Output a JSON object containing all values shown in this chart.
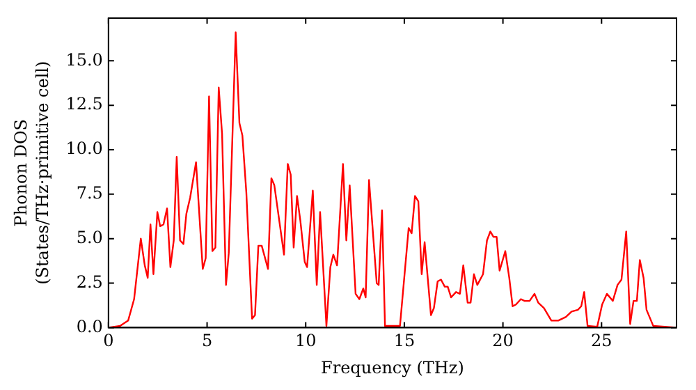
{
  "chart_data": {
    "type": "line",
    "xlabel": "Frequency (THz)",
    "ylabel": "Phonon DOS\n(States/THz·primitive cell)",
    "x": [
      0,
      0.6,
      1.0,
      1.3,
      1.64,
      1.84,
      1.99,
      2.13,
      2.28,
      2.48,
      2.62,
      2.79,
      2.97,
      3.14,
      3.31,
      3.46,
      3.63,
      3.8,
      3.95,
      4.14,
      4.44,
      4.78,
      4.93,
      5.1,
      5.27,
      5.42,
      5.59,
      5.76,
      5.96,
      6.1,
      6.45,
      6.64,
      6.79,
      6.99,
      7.28,
      7.43,
      7.6,
      7.77,
      8.09,
      8.26,
      8.41,
      8.9,
      9.09,
      9.24,
      9.39,
      9.56,
      9.73,
      9.95,
      10.07,
      10.36,
      10.56,
      10.73,
      11.05,
      11.25,
      11.4,
      11.59,
      11.89,
      12.06,
      12.23,
      12.53,
      12.72,
      12.92,
      13.04,
      13.21,
      13.6,
      13.7,
      13.87,
      14.02,
      14.78,
      15.22,
      15.37,
      15.54,
      15.71,
      15.88,
      16.03,
      16.35,
      16.5,
      16.69,
      16.86,
      17.05,
      17.2,
      17.37,
      17.62,
      17.82,
      17.99,
      18.21,
      18.36,
      18.53,
      18.7,
      18.99,
      19.19,
      19.36,
      19.52,
      19.68,
      19.83,
      20.12,
      20.32,
      20.49,
      20.66,
      20.91,
      21.1,
      21.35,
      21.6,
      21.79,
      22.08,
      22.45,
      22.82,
      23.19,
      23.48,
      23.8,
      23.97,
      24.12,
      24.29,
      24.78,
      25.03,
      25.27,
      25.57,
      25.81,
      26.01,
      26.25,
      26.45,
      26.62,
      26.79,
      26.94,
      27.13,
      27.28,
      27.62,
      28.8
    ],
    "series": [
      {
        "color": "#ff0000",
        "values": [
          0,
          0.1,
          0.4,
          1.6,
          5.0,
          3.5,
          2.8,
          5.8,
          3.0,
          6.5,
          5.7,
          5.8,
          6.7,
          3.4,
          4.9,
          9.6,
          4.9,
          4.7,
          6.4,
          7.3,
          9.3,
          3.3,
          3.9,
          13.0,
          4.3,
          4.5,
          13.5,
          10.9,
          2.4,
          4.2,
          16.6,
          11.5,
          10.8,
          7.6,
          0.5,
          0.7,
          4.6,
          4.6,
          3.3,
          8.4,
          8.0,
          4.1,
          9.2,
          8.6,
          4.5,
          7.4,
          6.0,
          3.7,
          3.4,
          7.7,
          2.4,
          6.5,
          0.1,
          3.4,
          4.1,
          3.5,
          9.2,
          4.9,
          8.0,
          1.9,
          1.6,
          2.2,
          1.7,
          8.3,
          2.5,
          2.4,
          6.6,
          0.1,
          0.1,
          5.6,
          5.3,
          7.4,
          7.1,
          3.0,
          4.8,
          0.7,
          1.1,
          2.6,
          2.7,
          2.3,
          2.3,
          1.7,
          2.0,
          1.9,
          3.5,
          1.4,
          1.4,
          3.0,
          2.4,
          3.0,
          4.9,
          5.4,
          5.1,
          5.1,
          3.2,
          4.3,
          2.8,
          1.2,
          1.3,
          1.6,
          1.5,
          1.5,
          1.9,
          1.4,
          1.1,
          0.4,
          0.4,
          0.6,
          0.9,
          1.0,
          1.2,
          2.0,
          0.1,
          0.05,
          1.3,
          1.9,
          1.5,
          2.4,
          2.7,
          5.4,
          0.2,
          1.5,
          1.5,
          3.8,
          2.8,
          1.0,
          0.1,
          0
        ]
      }
    ],
    "xlim": [
      0,
      28.8
    ],
    "ylim": [
      0,
      17.4
    ],
    "xticks": [
      0,
      5,
      10,
      15,
      20,
      25
    ],
    "yticks": [
      {
        "value": 0,
        "label": "0.0"
      },
      {
        "value": 2.5,
        "label": "2.5"
      },
      {
        "value": 5,
        "label": "5.0"
      },
      {
        "value": 7.5,
        "label": "7.5"
      },
      {
        "value": 10,
        "label": "10.0"
      },
      {
        "value": 12.5,
        "label": "12.5"
      },
      {
        "value": 15,
        "label": "15.0"
      }
    ],
    "grid": false,
    "legend": false,
    "marker": "none",
    "line_style": "solid"
  }
}
